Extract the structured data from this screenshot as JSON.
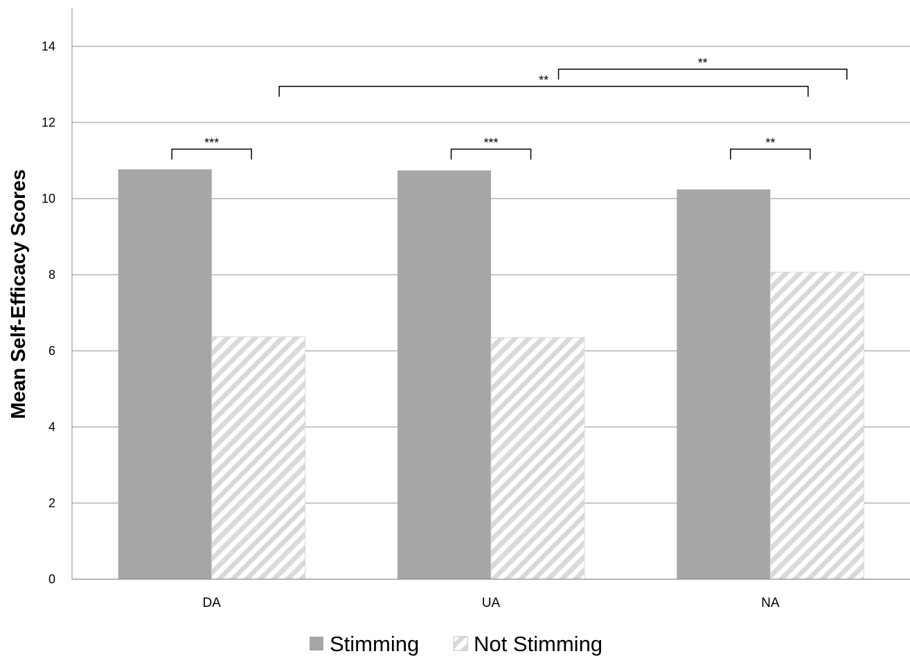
{
  "chart_data": {
    "type": "bar",
    "title": "",
    "xlabel": "",
    "ylabel": "Mean Self-Efficacy Scores",
    "ylim": [
      0,
      15
    ],
    "yticks": [
      0,
      2,
      4,
      6,
      8,
      10,
      12,
      14
    ],
    "grid": true,
    "legend_position": "bottom-center",
    "categories": [
      "DA",
      "UA",
      "NA"
    ],
    "series": [
      {
        "name": "Stimming",
        "values": [
          10.77,
          10.74,
          10.24
        ],
        "color": "#a6a6a6",
        "pattern": "solid"
      },
      {
        "name": "Not Stimming",
        "values": [
          6.37,
          6.35,
          8.07
        ],
        "color": "#d9d9d9",
        "pattern": "diagonal-hatch"
      }
    ],
    "annotations": [
      {
        "label": "***",
        "between": [
          "DA Stimming",
          "DA Not Stimming"
        ],
        "y": 11.3
      },
      {
        "label": "***",
        "between": [
          "UA Stimming",
          "UA Not Stimming"
        ],
        "y": 11.3
      },
      {
        "label": "**",
        "between": [
          "NA Stimming",
          "NA Not Stimming"
        ],
        "y": 11.3
      },
      {
        "label": "**",
        "between": [
          "DA Not Stimming",
          "NA Not Stimming"
        ],
        "y": 12.95
      },
      {
        "label": "**",
        "between": [
          "UA Not Stimming",
          "NA Not Stimming"
        ],
        "y": 13.4
      }
    ]
  }
}
